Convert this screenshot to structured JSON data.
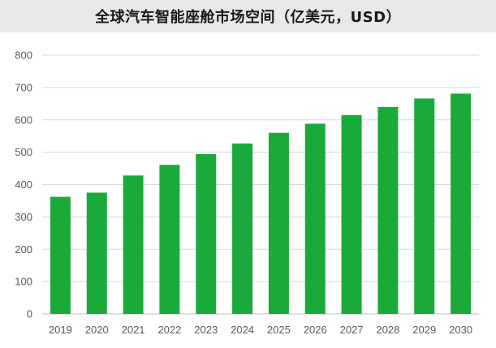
{
  "chart_data": {
    "type": "bar",
    "title": "全球汽车智能座舱市场空间（亿美元，USD）",
    "categories": [
      "2019",
      "2020",
      "2021",
      "2022",
      "2023",
      "2024",
      "2025",
      "2026",
      "2027",
      "2028",
      "2029",
      "2030"
    ],
    "values": [
      362,
      375,
      428,
      461,
      494,
      527,
      560,
      588,
      615,
      640,
      666,
      681
    ],
    "ylim": [
      0,
      800
    ],
    "yticks": [
      0,
      100,
      200,
      300,
      400,
      500,
      600,
      700,
      800
    ],
    "grid": true,
    "bar_color": "#1aaa3a",
    "title_bg": "#e8e8e8"
  }
}
